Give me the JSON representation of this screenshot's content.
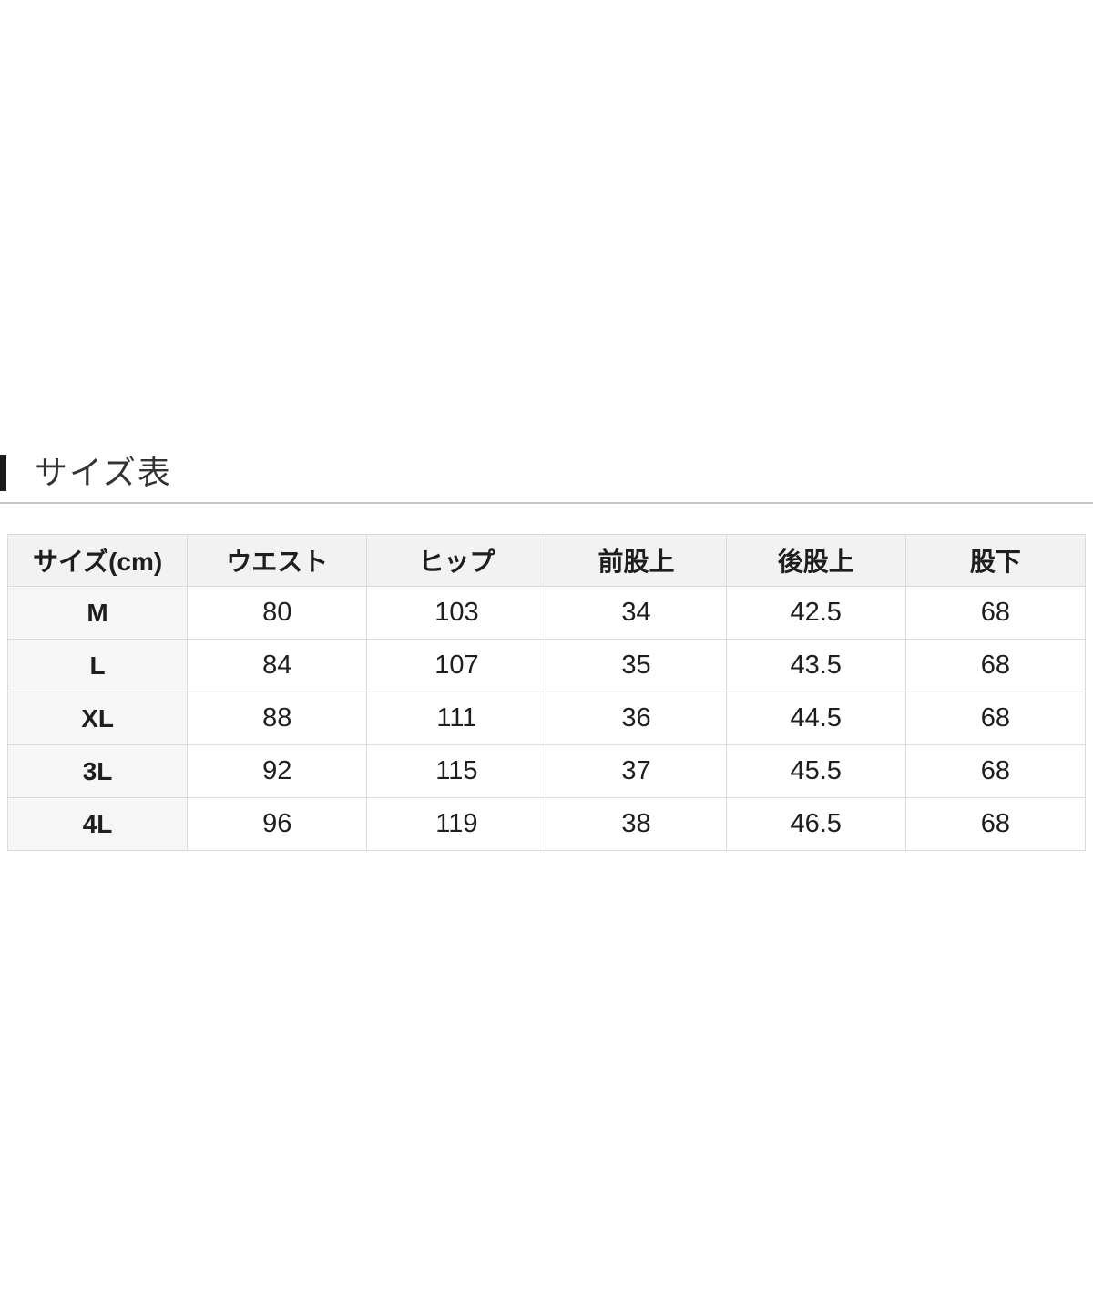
{
  "page": {
    "background": "#ffffff"
  },
  "section": {
    "title": "サイズ表",
    "accent_bar_color": "#1a1a1a",
    "divider_color": "#c5c5c5"
  },
  "size_table": {
    "columns": [
      "サイズ(cm)",
      "ウエスト",
      "ヒップ",
      "前股上",
      "後股上",
      "股下"
    ],
    "rows": [
      [
        "M",
        "80",
        "103",
        "34",
        "42.5",
        "68"
      ],
      [
        "L",
        "84",
        "107",
        "35",
        "43.5",
        "68"
      ],
      [
        "XL",
        "88",
        "111",
        "36",
        "44.5",
        "68"
      ],
      [
        "3L",
        "92",
        "115",
        "37",
        "45.5",
        "68"
      ],
      [
        "4L",
        "96",
        "119",
        "38",
        "46.5",
        "68"
      ]
    ],
    "colors": {
      "header_bg": "#f2f2f2",
      "size_col_bg": "#f6f6f6",
      "border": "#dbdbdb",
      "text": "#1e1e1e"
    }
  }
}
